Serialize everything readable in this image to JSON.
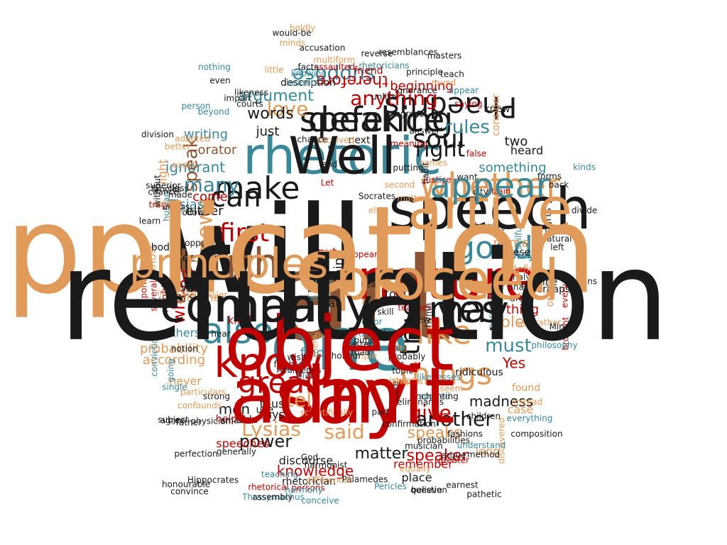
{
  "palette": {
    "dark": "#1a1a1a",
    "red": "#c00000",
    "brown": "#8b5535",
    "teal": "#3a8797",
    "tan": "#e09a5a"
  },
  "words": [
    {
      "text": "will",
      "color": "dark"
    },
    {
      "text": "art",
      "color": "brown"
    },
    {
      "text": "say",
      "color": "red"
    },
    {
      "text": "one",
      "color": "teal"
    },
    {
      "text": "speech",
      "color": "dark"
    },
    {
      "text": "rhetoric",
      "color": "teal"
    },
    {
      "text": "nature",
      "color": "red"
    },
    {
      "text": "speaking",
      "color": "dark"
    },
    {
      "text": "man",
      "color": "dark"
    },
    {
      "text": "truth",
      "color": "brown"
    },
    {
      "text": "whether",
      "color": "tan"
    },
    {
      "text": "may",
      "color": "dark"
    },
    {
      "text": "know",
      "color": "red"
    },
    {
      "text": "also",
      "color": "teal"
    },
    {
      "text": "like",
      "color": "tan"
    },
    {
      "text": "good",
      "color": "teal"
    },
    {
      "text": "great",
      "color": "red"
    },
    {
      "text": "things",
      "color": "tan"
    },
    {
      "text": "make",
      "color": "dark"
    },
    {
      "text": "true",
      "color": "dark"
    },
    {
      "text": "knows",
      "color": "tan"
    },
    {
      "text": "Phaedrus",
      "color": "dark"
    },
    {
      "text": "first",
      "color": "red"
    },
    {
      "text": "can",
      "color": "dark"
    },
    {
      "text": "soul",
      "color": "dark"
    },
    {
      "text": "right",
      "color": "dark"
    },
    {
      "text": "anything",
      "color": "red"
    },
    {
      "text": "suppose",
      "color": "teal"
    },
    {
      "text": "love",
      "color": "tan"
    },
    {
      "text": "speak",
      "color": "brown"
    },
    {
      "text": "said",
      "color": "tan"
    },
    {
      "text": "give",
      "color": "red"
    },
    {
      "text": "another",
      "color": "dark"
    },
    {
      "text": "Lysias",
      "color": "tan"
    },
    {
      "text": "tell",
      "color": "tan"
    },
    {
      "text": "must",
      "color": "teal"
    },
    {
      "text": "many",
      "color": "teal"
    },
    {
      "text": "argument",
      "color": "teal"
    },
    {
      "text": "therefore",
      "color": "red"
    },
    {
      "text": "rules",
      "color": "teal"
    },
    {
      "text": "words",
      "color": "dark"
    },
    {
      "text": "ignorant",
      "color": "teal"
    },
    {
      "text": "whole",
      "color": "red"
    },
    {
      "text": "well",
      "color": "dark"
    },
    {
      "text": "matter",
      "color": "dark"
    },
    {
      "text": "power",
      "color": "dark"
    },
    {
      "text": "speaker",
      "color": "red"
    },
    {
      "text": "speaks",
      "color": "tan"
    },
    {
      "text": "able",
      "color": "tan"
    },
    {
      "text": "madness",
      "color": "dark"
    },
    {
      "text": "knowledge",
      "color": "red"
    },
    {
      "text": "Yes",
      "color": "red"
    },
    {
      "text": "men",
      "color": "dark"
    },
    {
      "text": "probability",
      "color": "tan"
    },
    {
      "text": "beginning",
      "color": "red"
    },
    {
      "text": "something",
      "color": "teal"
    },
    {
      "text": "orator",
      "color": "brown"
    },
    {
      "text": "heard",
      "color": "dark"
    },
    {
      "text": "speeches",
      "color": "red"
    },
    {
      "text": "horse",
      "color": "dark"
    },
    {
      "text": "writing",
      "color": "teal"
    },
    {
      "text": "Tisias",
      "color": "teal"
    },
    {
      "text": "either",
      "color": "dark"
    },
    {
      "text": "come",
      "color": "red"
    },
    {
      "text": "name",
      "color": "tan"
    },
    {
      "text": "discourse",
      "color": "dark"
    },
    {
      "text": "according",
      "color": "tan"
    },
    {
      "text": "remember",
      "color": "red"
    },
    {
      "text": "place",
      "color": "dark"
    },
    {
      "text": "rhetorician",
      "color": "dark"
    },
    {
      "text": "far",
      "color": "teal"
    },
    {
      "text": "thing",
      "color": "red"
    },
    {
      "text": "way",
      "color": "teal"
    },
    {
      "text": "two",
      "color": "dark"
    },
    {
      "text": "case",
      "color": "tan"
    },
    {
      "text": "long",
      "color": "tan"
    },
    {
      "text": "just",
      "color": "dark"
    },
    {
      "text": "medicine",
      "color": "tan"
    },
    {
      "text": "think",
      "color": "dark"
    },
    {
      "text": "time",
      "color": "red"
    },
    {
      "text": "others",
      "color": "teal"
    },
    {
      "text": "never",
      "color": "tan"
    },
    {
      "text": "says",
      "color": "dark"
    },
    {
      "text": "thus",
      "color": "dark"
    },
    {
      "text": "kind",
      "color": "red"
    },
    {
      "text": "find",
      "color": "teal"
    },
    {
      "text": "fair",
      "color": "dark"
    },
    {
      "text": "told",
      "color": "dark"
    },
    {
      "text": "put",
      "color": "red"
    },
    {
      "text": "see",
      "color": "dark"
    },
    {
      "text": "short",
      "color": "tan"
    },
    {
      "text": "light",
      "color": "tan"
    },
    {
      "text": "body",
      "color": "dark"
    },
    {
      "text": "define",
      "color": "tan"
    },
    {
      "text": "found",
      "color": "tan"
    },
    {
      "text": "use",
      "color": "dark"
    },
    {
      "text": "side",
      "color": "dark"
    },
    {
      "text": "help",
      "color": "red"
    },
    {
      "text": "friend",
      "color": "red"
    },
    {
      "text": "next",
      "color": "dark"
    },
    {
      "text": "knew",
      "color": "dark"
    },
    {
      "text": "parts",
      "color": "dark"
    },
    {
      "text": "present",
      "color": "dark"
    },
    {
      "text": "divine",
      "color": "dark"
    },
    {
      "text": "perhaps",
      "color": "dark"
    },
    {
      "text": "teaching",
      "color": "teal"
    },
    {
      "text": "rhetorical",
      "color": "red"
    },
    {
      "text": "Hippocrates",
      "color": "dark"
    },
    {
      "text": "Thrasymachus",
      "color": "teal"
    },
    {
      "text": "Pericles",
      "color": "teal"
    },
    {
      "text": "Palamedes",
      "color": "dark"
    },
    {
      "text": "conceive",
      "color": "teal"
    },
    {
      "text": "question",
      "color": "dark"
    },
    {
      "text": "persons",
      "color": "red"
    },
    {
      "text": "differences",
      "color": "tan"
    },
    {
      "text": "harmony",
      "color": "teal"
    },
    {
      "text": "multiform",
      "color": "tan"
    },
    {
      "text": "accusation",
      "color": "dark"
    },
    {
      "text": "assaulted",
      "color": "red"
    },
    {
      "text": "description",
      "color": "dark"
    },
    {
      "text": "resemblances",
      "color": "dark"
    },
    {
      "text": "rhetoricians",
      "color": "teal"
    },
    {
      "text": "nothing",
      "color": "teal"
    },
    {
      "text": "principle",
      "color": "dark"
    },
    {
      "text": "likeness",
      "color": "dark"
    },
    {
      "text": "courts",
      "color": "dark"
    },
    {
      "text": "answer",
      "color": "dark"
    },
    {
      "text": "hearers",
      "color": "teal"
    },
    {
      "text": "appear",
      "color": "teal"
    },
    {
      "text": "saying",
      "color": "red"
    },
    {
      "text": "consider",
      "color": "tan"
    },
    {
      "text": "natural",
      "color": "dark"
    },
    {
      "text": "deceived",
      "color": "tan"
    },
    {
      "text": "meaning",
      "color": "red"
    },
    {
      "text": "chance",
      "color": "dark"
    },
    {
      "text": "skilful",
      "color": "teal"
    },
    {
      "text": "order",
      "color": "tan"
    },
    {
      "text": "every",
      "color": "red"
    },
    {
      "text": "persuaded",
      "color": "teal"
    },
    {
      "text": "ridiculous",
      "color": "dark"
    },
    {
      "text": "brought",
      "color": "red"
    },
    {
      "text": "instead",
      "color": "tan"
    },
    {
      "text": "discovered",
      "color": "tan"
    },
    {
      "text": "everything",
      "color": "teal"
    },
    {
      "text": "composition",
      "color": "dark"
    },
    {
      "text": "seem",
      "color": "tan"
    },
    {
      "text": "understand",
      "color": "teal"
    },
    {
      "text": "generally",
      "color": "dark"
    },
    {
      "text": "physician",
      "color": "dark"
    },
    {
      "text": "small",
      "color": "dark"
    },
    {
      "text": "agree",
      "color": "dark"
    },
    {
      "text": "strong",
      "color": "dark"
    },
    {
      "text": "single",
      "color": "teal"
    },
    {
      "text": "going",
      "color": "teal"
    },
    {
      "text": "conviction",
      "color": "teal"
    },
    {
      "text": "notion",
      "color": "dark"
    },
    {
      "text": "several",
      "color": "red"
    },
    {
      "text": "always",
      "color": "teal"
    },
    {
      "text": "might",
      "color": "red"
    },
    {
      "text": "upon",
      "color": "red"
    },
    {
      "text": "tragedy",
      "color": "red"
    },
    {
      "text": "human",
      "color": "teal"
    },
    {
      "text": "acting",
      "color": "tan"
    },
    {
      "text": "class",
      "color": "dark"
    },
    {
      "text": "division",
      "color": "dark"
    },
    {
      "text": "better",
      "color": "tan"
    },
    {
      "text": "exact",
      "color": "tan"
    },
    {
      "text": "adapted",
      "color": "tan"
    },
    {
      "text": "without",
      "color": "dark"
    },
    {
      "text": "learn",
      "color": "dark"
    },
    {
      "text": "probably",
      "color": "dark"
    },
    {
      "text": "teaches",
      "color": "red"
    },
    {
      "text": "Socrates",
      "color": "dark"
    },
    {
      "text": "Let",
      "color": "red"
    },
    {
      "text": "end",
      "color": "dark"
    },
    {
      "text": "else",
      "color": "tan"
    },
    {
      "text": "real",
      "color": "dark"
    },
    {
      "text": "skill",
      "color": "dark"
    },
    {
      "text": "appears",
      "color": "red"
    },
    {
      "text": "lover",
      "color": "teal"
    },
    {
      "text": "yet",
      "color": "tan"
    },
    {
      "text": "old",
      "color": "dark"
    },
    {
      "text": "let",
      "color": "teal"
    },
    {
      "text": "left",
      "color": "dark"
    },
    {
      "text": "mind",
      "color": "dark"
    },
    {
      "text": "forms",
      "color": "dark"
    },
    {
      "text": "kinds",
      "color": "teal"
    },
    {
      "text": "back",
      "color": "dark"
    },
    {
      "text": "divide",
      "color": "dark"
    },
    {
      "text": "showing",
      "color": "dark"
    },
    {
      "text": "Shall",
      "color": "dark"
    },
    {
      "text": "notions",
      "color": "dark"
    },
    {
      "text": "rather",
      "color": "tan"
    },
    {
      "text": "analysis",
      "color": "dark"
    },
    {
      "text": "philosophy",
      "color": "teal"
    },
    {
      "text": "Mind",
      "color": "dark"
    },
    {
      "text": "children",
      "color": "dark"
    },
    {
      "text": "fashions",
      "color": "dark"
    },
    {
      "text": "argue",
      "color": "dark"
    },
    {
      "text": "method",
      "color": "dark"
    },
    {
      "text": "pathetic",
      "color": "dark"
    },
    {
      "text": "earnest",
      "color": "dark"
    },
    {
      "text": "greater",
      "color": "red"
    },
    {
      "text": "equally",
      "color": "tan"
    },
    {
      "text": "believe",
      "color": "dark"
    },
    {
      "text": "assembly",
      "color": "dark"
    },
    {
      "text": "honourable",
      "color": "dark"
    },
    {
      "text": "convince",
      "color": "dark"
    },
    {
      "text": "perfection",
      "color": "dark"
    },
    {
      "text": "subject",
      "color": "dark"
    },
    {
      "text": "confounds",
      "color": "tan"
    },
    {
      "text": "particulars",
      "color": "tan"
    },
    {
      "text": "father",
      "color": "dark"
    },
    {
      "text": "mistaken",
      "color": "tan"
    },
    {
      "text": "applied",
      "color": "teal"
    },
    {
      "text": "likenesses",
      "color": "teal"
    },
    {
      "text": "enchanting",
      "color": "dark"
    },
    {
      "text": "topic",
      "color": "dark"
    },
    {
      "text": "take",
      "color": "dark"
    },
    {
      "text": "examples",
      "color": "tan"
    },
    {
      "text": "simple",
      "color": "tan"
    },
    {
      "text": "master",
      "color": "dark"
    },
    {
      "text": "pupil",
      "color": "dark"
    },
    {
      "text": "road",
      "color": "dark"
    },
    {
      "text": "honour",
      "color": "dark"
    },
    {
      "text": "certain",
      "color": "teal"
    },
    {
      "text": "Acumenus",
      "color": "dark"
    },
    {
      "text": "blind",
      "color": "teal"
    },
    {
      "text": "forth",
      "color": "dark"
    },
    {
      "text": "wish",
      "color": "dark"
    },
    {
      "text": "mere",
      "color": "tan"
    },
    {
      "text": "note",
      "color": "tan"
    },
    {
      "text": "error",
      "color": "teal"
    },
    {
      "text": "noble",
      "color": "dark"
    },
    {
      "text": "view",
      "color": "dark"
    },
    {
      "text": "gifts",
      "color": "tan"
    },
    {
      "text": "hymn",
      "color": "dark"
    },
    {
      "text": "head",
      "color": "dark"
    },
    {
      "text": "look",
      "color": "dark"
    },
    {
      "text": "arts",
      "color": "dark"
    },
    {
      "text": "alike",
      "color": "tan"
    },
    {
      "text": "clear",
      "color": "dark"
    },
    {
      "text": "want",
      "color": "dark"
    },
    {
      "text": "false",
      "color": "red"
    },
    {
      "text": "city",
      "color": "dark"
    },
    {
      "text": "attain",
      "color": "red"
    },
    {
      "text": "ignorance",
      "color": "dark"
    },
    {
      "text": "round",
      "color": "tan"
    },
    {
      "text": "masters",
      "color": "dark"
    },
    {
      "text": "names",
      "color": "tan"
    },
    {
      "text": "justice",
      "color": "red"
    },
    {
      "text": "habit",
      "color": "dark"
    },
    {
      "text": "matters",
      "color": "tan"
    },
    {
      "text": "second",
      "color": "tan"
    },
    {
      "text": "putting",
      "color": "dark"
    },
    {
      "text": "unlike",
      "color": "dark"
    },
    {
      "text": "agrees",
      "color": "dark"
    },
    {
      "text": "even",
      "color": "dark"
    },
    {
      "text": "beyond",
      "color": "teal"
    },
    {
      "text": "person",
      "color": "teal"
    },
    {
      "text": "fancies",
      "color": "dark"
    },
    {
      "text": "made",
      "color": "dark"
    },
    {
      "text": "chance",
      "color": "dark"
    },
    {
      "text": "unless",
      "color": "dark"
    },
    {
      "text": "superior",
      "color": "dark"
    },
    {
      "text": "follows",
      "color": "dark"
    },
    {
      "text": "shorter",
      "color": "tan"
    },
    {
      "text": "inspiration",
      "color": "tan"
    },
    {
      "text": "easier",
      "color": "tan"
    },
    {
      "text": "opposite",
      "color": "dark"
    },
    {
      "text": "hear",
      "color": "dark"
    },
    {
      "text": "impart",
      "color": "dark"
    },
    {
      "text": "little",
      "color": "tan"
    },
    {
      "text": "would-be",
      "color": "dark"
    },
    {
      "text": "boldly",
      "color": "tan"
    },
    {
      "text": "facts",
      "color": "dark"
    },
    {
      "text": "reverse",
      "color": "dark"
    },
    {
      "text": "teach",
      "color": "dark"
    },
    {
      "text": "knowing",
      "color": "teal"
    },
    {
      "text": "minds",
      "color": "tan"
    },
    {
      "text": "God",
      "color": "dark"
    },
    {
      "text": "harmonist",
      "color": "dark"
    },
    {
      "text": "partly",
      "color": "dark"
    },
    {
      "text": "confirmation",
      "color": "dark"
    },
    {
      "text": "musician",
      "color": "dark"
    },
    {
      "text": "scientifically",
      "color": "tan"
    },
    {
      "text": "probabilities",
      "color": "dark"
    },
    {
      "text": "preliminaries",
      "color": "dark"
    },
    {
      "text": "application",
      "color": "tan"
    },
    {
      "text": "refutation",
      "color": "dark"
    },
    {
      "text": "admit",
      "color": "red"
    },
    {
      "text": "object",
      "color": "red"
    },
    {
      "text": "arrive",
      "color": "tan"
    },
    {
      "text": "Well",
      "color": "dark"
    },
    {
      "text": "proceed",
      "color": "tan"
    },
    {
      "text": "defence",
      "color": "dark"
    },
    {
      "text": "company",
      "color": "dark"
    },
    {
      "text": "principles",
      "color": "tan"
    },
    {
      "text": "appear",
      "color": "teal"
    },
    {
      "text": "yes",
      "color": "dark"
    }
  ]
}
